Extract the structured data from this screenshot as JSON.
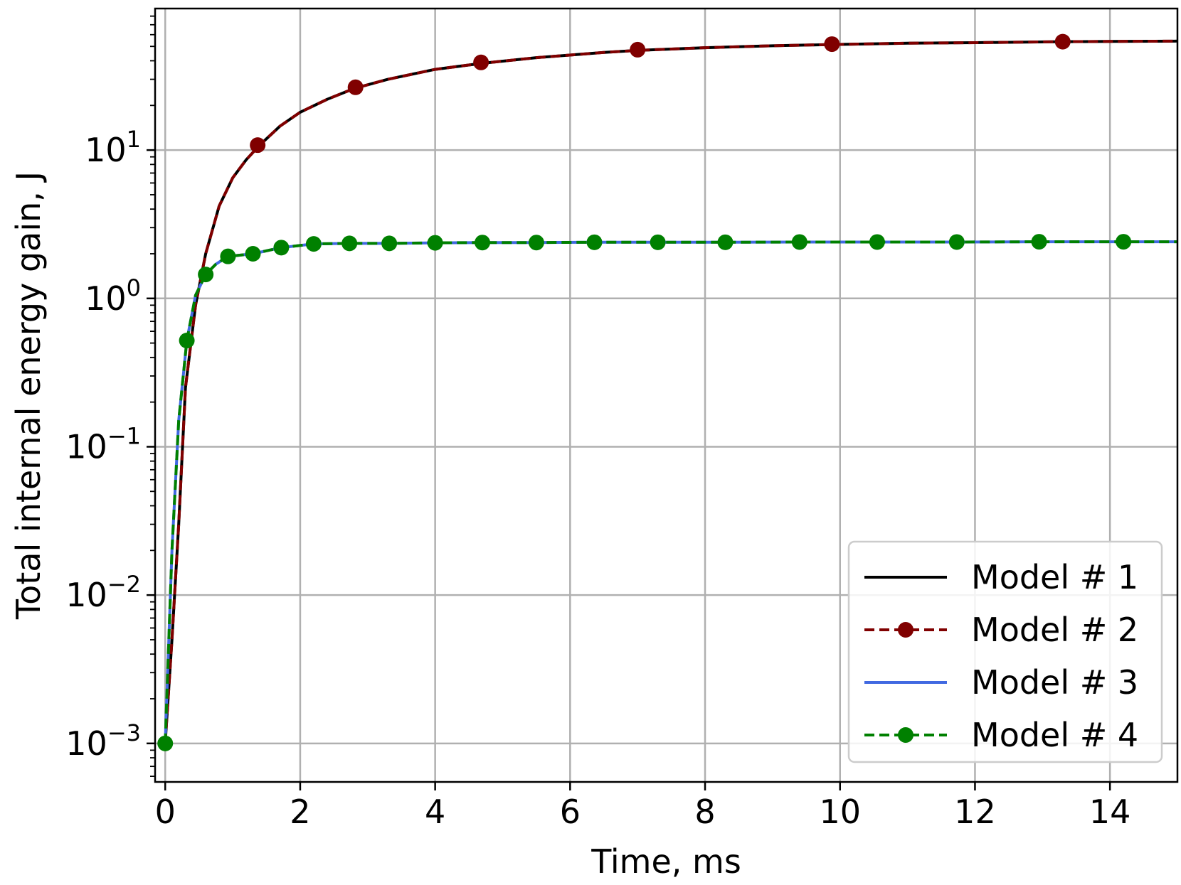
{
  "chart_data": {
    "type": "line",
    "xlabel": "Time, ms",
    "ylabel": "Total internal energy gain, J",
    "xlim": [
      -0.15,
      15
    ],
    "ylim": [
      0.00055,
      90
    ],
    "yscale": "log",
    "grid": true,
    "legend_position": "lower-right",
    "x_ticks": [
      0,
      2,
      4,
      6,
      8,
      10,
      12,
      14
    ],
    "y_ticks": [
      {
        "value": 0.001,
        "base": "10",
        "exp": "−3"
      },
      {
        "value": 0.01,
        "base": "10",
        "exp": "−2"
      },
      {
        "value": 0.1,
        "base": "10",
        "exp": "−1"
      },
      {
        "value": 1,
        "base": "10",
        "exp": "0"
      },
      {
        "value": 10,
        "base": "10",
        "exp": "1"
      }
    ],
    "series": [
      {
        "name": "Model # 1",
        "color": "#000000",
        "style": "solid",
        "markers": false,
        "x": [
          0,
          0.1,
          0.2,
          0.3,
          0.45,
          0.6,
          0.8,
          1.0,
          1.2,
          1.4,
          1.7,
          2.0,
          2.4,
          2.8,
          3.3,
          4.0,
          4.7,
          5.5,
          6.5,
          7.0,
          8.0,
          9.0,
          9.9,
          11.0,
          12.0,
          13.3,
          14.0,
          15.0
        ],
        "y": [
          0.001,
          0.005,
          0.03,
          0.25,
          0.9,
          2.0,
          4.2,
          6.5,
          8.6,
          10.8,
          14.5,
          18.0,
          22.0,
          26.0,
          30.0,
          35.0,
          38.5,
          42.0,
          45.5,
          47.0,
          49.0,
          50.5,
          51.5,
          52.5,
          53.0,
          53.8,
          54.0,
          54.3
        ]
      },
      {
        "name": "Model # 2",
        "color": "#800000",
        "style": "dashed",
        "markers": true,
        "x": [
          0,
          0.1,
          0.2,
          0.3,
          0.45,
          0.6,
          0.8,
          1.0,
          1.2,
          1.4,
          1.7,
          2.0,
          2.4,
          2.8,
          3.3,
          4.0,
          4.7,
          5.5,
          6.5,
          7.0,
          8.0,
          9.0,
          9.9,
          11.0,
          12.0,
          13.3,
          14.0,
          15.0
        ],
        "y": [
          0.001,
          0.005,
          0.03,
          0.25,
          0.9,
          2.0,
          4.2,
          6.5,
          8.6,
          10.8,
          14.5,
          18.0,
          22.0,
          26.0,
          30.0,
          35.0,
          38.5,
          42.0,
          45.5,
          47.0,
          49.0,
          50.5,
          51.5,
          52.5,
          53.0,
          53.8,
          54.0,
          54.3
        ],
        "marker_x": [
          1.37,
          2.82,
          4.68,
          7.0,
          9.88,
          13.3
        ],
        "marker_y": [
          10.8,
          26.5,
          39.0,
          47.5,
          51.8,
          53.8
        ]
      },
      {
        "name": "Model # 3",
        "color": "#4169e1",
        "style": "solid",
        "markers": false,
        "x": [
          0,
          0.1,
          0.2,
          0.32,
          0.45,
          0.6,
          0.75,
          0.93,
          1.3,
          1.72,
          2.2,
          2.73,
          3.32,
          4.0,
          4.7,
          5.5,
          6.36,
          7.3,
          8.3,
          9.4,
          10.55,
          11.73,
          12.95,
          14.2,
          15.0
        ],
        "y": [
          0.001,
          0.02,
          0.15,
          0.52,
          1.05,
          1.45,
          1.7,
          1.92,
          2.0,
          2.2,
          2.33,
          2.35,
          2.35,
          2.37,
          2.38,
          2.38,
          2.39,
          2.39,
          2.39,
          2.4,
          2.4,
          2.4,
          2.41,
          2.41,
          2.41
        ]
      },
      {
        "name": "Model # 4",
        "color": "#008000",
        "style": "dashed",
        "markers": true,
        "x": [
          0,
          0.1,
          0.2,
          0.32,
          0.45,
          0.6,
          0.75,
          0.93,
          1.3,
          1.72,
          2.2,
          2.73,
          3.32,
          4.0,
          4.7,
          5.5,
          6.36,
          7.3,
          8.3,
          9.4,
          10.55,
          11.73,
          12.95,
          14.2,
          15.0
        ],
        "y": [
          0.001,
          0.02,
          0.15,
          0.52,
          1.05,
          1.45,
          1.7,
          1.92,
          2.0,
          2.2,
          2.33,
          2.35,
          2.35,
          2.37,
          2.38,
          2.38,
          2.39,
          2.39,
          2.39,
          2.4,
          2.4,
          2.4,
          2.41,
          2.41,
          2.41
        ],
        "marker_x": [
          0,
          0.32,
          0.6,
          0.93,
          1.3,
          1.72,
          2.2,
          2.73,
          3.32,
          4.0,
          4.7,
          5.5,
          6.36,
          7.3,
          8.3,
          9.4,
          10.55,
          11.73,
          12.95,
          14.2
        ],
        "marker_y": [
          0.001,
          0.52,
          1.45,
          1.92,
          2.0,
          2.2,
          2.33,
          2.35,
          2.35,
          2.37,
          2.38,
          2.38,
          2.39,
          2.39,
          2.39,
          2.4,
          2.4,
          2.4,
          2.41,
          2.41
        ]
      }
    ]
  }
}
